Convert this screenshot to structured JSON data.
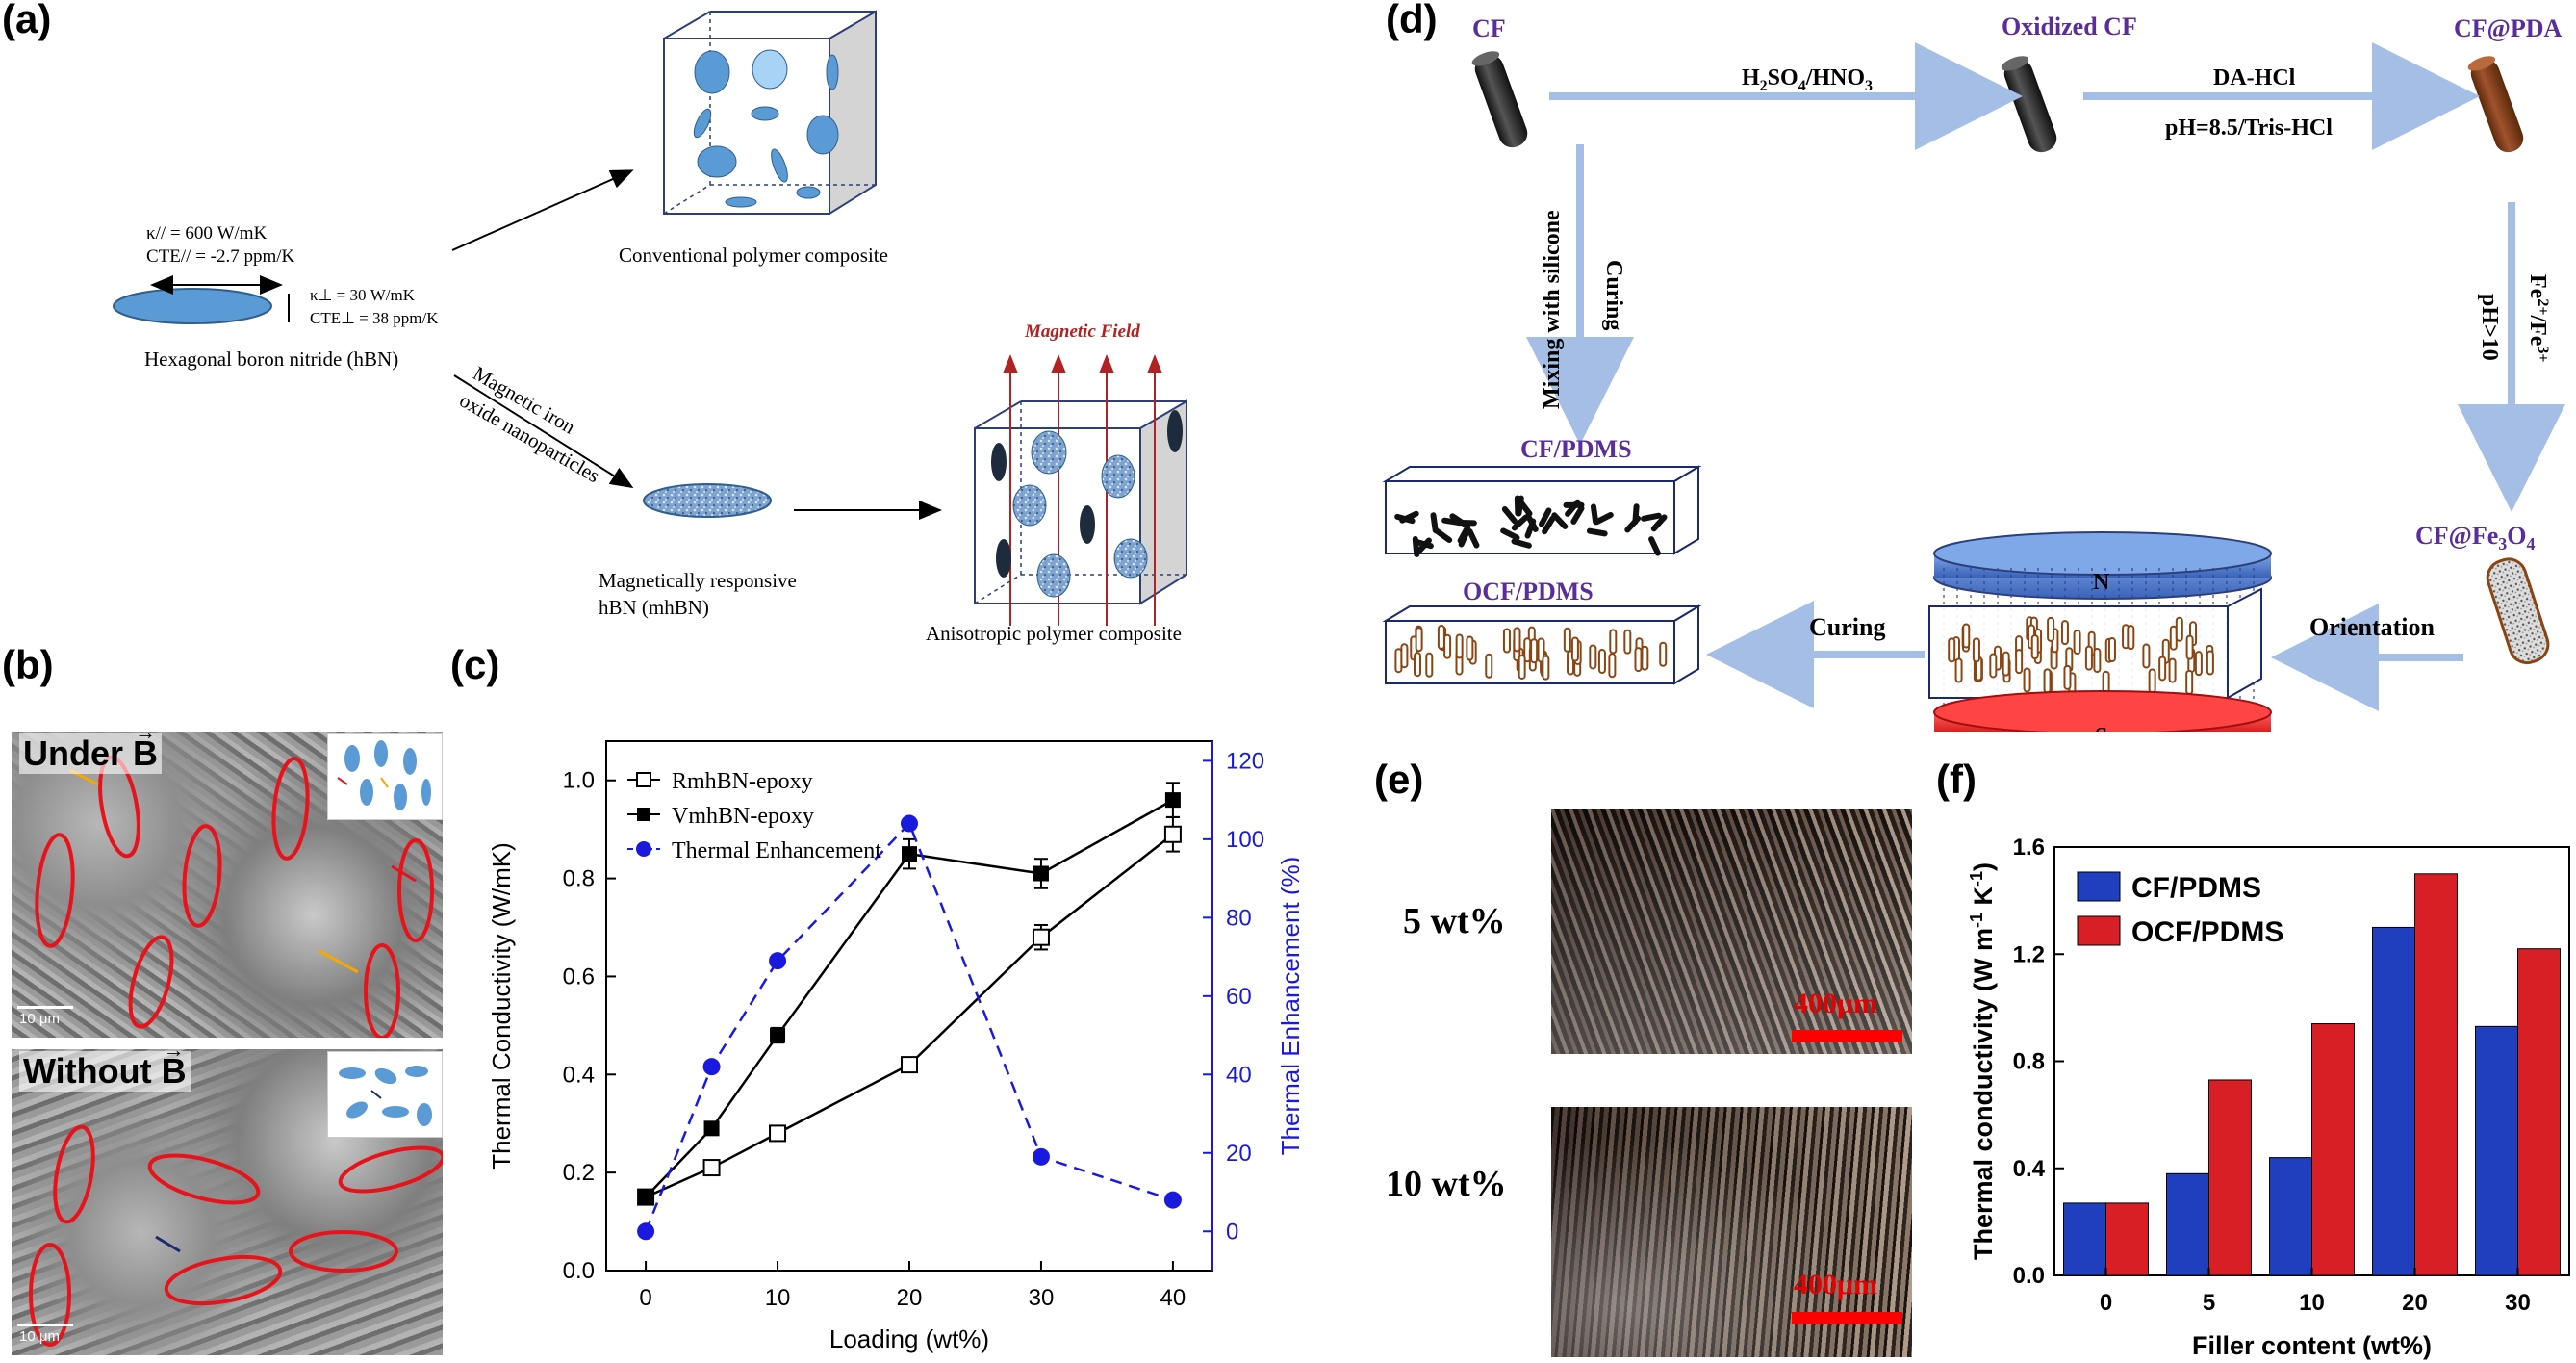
{
  "panels": {
    "a": {
      "letter": "(a)",
      "hbn_kappa_par": "κ// = 600 W/mK",
      "hbn_cte_par": "CTE// = -2.7 ppm/K",
      "hbn_kappa_perp": "κ⊥ = 30 W/mK",
      "hbn_cte_perp": "CTE⊥ = 38 ppm/K",
      "hbn_label": "Hexagonal boron nitride (hBN)",
      "conventional_label": "Conventional polymer composite",
      "magnetic_iron_1": "Magnetic iron",
      "magnetic_iron_2": "oxide nanoparticles",
      "mhbn_label_1": "Magnetically responsive",
      "mhbn_label_2": "hBN (mhBN)",
      "magnetic_field": "Magnetic Field",
      "anisotropic_label": "Anisotropic polymer composite"
    },
    "b": {
      "letter": "(b)",
      "under_label": "Under",
      "without_label": "Without",
      "b_vector": "B",
      "scale_bar": "10 μm"
    },
    "c": {
      "letter": "(c)"
    },
    "d": {
      "letter": "(d)",
      "cf": "CF",
      "oxidized_cf": "Oxidized CF",
      "cf_pda": "CF@PDA",
      "acid": "H2SO4/HNO3",
      "da_hcl": "DA-HCl",
      "ph_tris": "pH=8.5/Tris-HCl",
      "fe_ions": "Fe2+/Fe3+",
      "ph10": "pH>10",
      "cf_fe3o4": "CF@Fe3O4",
      "mixing": "Mixing with silicone",
      "curing_vertical": "Curing",
      "cf_pdms": "CF/PDMS",
      "ocf_pdms": "OCF/PDMS",
      "curing": "Curing",
      "orientation": "Orientation",
      "north": "N",
      "south": "S"
    },
    "e": {
      "letter": "(e)",
      "wt5": "5 wt%",
      "wt10": "10 wt%",
      "scale_bar": "400μm"
    },
    "f": {
      "letter": "(f)"
    }
  },
  "colors": {
    "hbn_blue": "#5b9bd5",
    "arrow_blue": "#a4bee6",
    "purple_label": "#5b2c9b",
    "pda_brown": "#8b4513",
    "magnet_north": "#4472c4",
    "magnet_south": "#ff2d2d",
    "ellipse_red": "#e8131a",
    "cf_bar_blue": "#1f3fbf",
    "ocf_bar_red": "#d91f26",
    "enhancement_blue": "#1a1adf"
  },
  "chart_data": [
    {
      "type": "line",
      "panel": "c",
      "xlabel": "Loading (wt%)",
      "ylabel": "Thermal Conductivity (W/mK)",
      "ylabel_right": "Thermal Enhancement (%)",
      "xlim": [
        -3,
        43
      ],
      "ylim": [
        0.0,
        1.08
      ],
      "ylim_right": [
        -10,
        125
      ],
      "x_ticks": [
        0,
        10,
        20,
        30,
        40
      ],
      "y_ticks": [
        0.0,
        0.2,
        0.4,
        0.6,
        0.8,
        1.0
      ],
      "y_right_ticks": [
        0,
        20,
        40,
        60,
        80,
        100,
        120
      ],
      "legend_position": "top-left",
      "series": [
        {
          "name": "RmhBN-epoxy",
          "axis": "left",
          "marker": "open-square",
          "x": [
            0,
            5,
            10,
            20,
            30,
            40
          ],
          "y": [
            0.15,
            0.21,
            0.28,
            0.42,
            0.68,
            0.89
          ],
          "err": [
            0.01,
            0.01,
            0.01,
            0.01,
            0.025,
            0.035
          ]
        },
        {
          "name": "VmhBN-epoxy",
          "axis": "left",
          "marker": "filled-square",
          "x": [
            0,
            5,
            10,
            20,
            30,
            40
          ],
          "y": [
            0.15,
            0.29,
            0.48,
            0.85,
            0.81,
            0.96
          ],
          "err": [
            0.01,
            0.01,
            0.015,
            0.03,
            0.03,
            0.035
          ]
        },
        {
          "name": "Thermal Enhancement",
          "axis": "right",
          "marker": "blue-circle",
          "dashed": true,
          "x": [
            0,
            5,
            10,
            20,
            30,
            40
          ],
          "y": [
            0,
            42,
            69,
            104,
            19,
            8
          ]
        }
      ]
    },
    {
      "type": "bar",
      "panel": "f",
      "xlabel": "Filler content (wt%)",
      "ylabel": "Thermal conductivity (W m-1 K-1)",
      "categories": [
        "0",
        "5",
        "10",
        "20",
        "30"
      ],
      "ylim": [
        0.0,
        1.6
      ],
      "y_ticks": [
        0.0,
        0.4,
        0.8,
        1.2,
        1.6
      ],
      "legend_position": "top-left",
      "series": [
        {
          "name": "CF/PDMS",
          "values": [
            0.27,
            0.38,
            0.44,
            1.3,
            0.93
          ]
        },
        {
          "name": "OCF/PDMS",
          "values": [
            0.27,
            0.73,
            0.94,
            1.5,
            1.22
          ]
        }
      ]
    }
  ]
}
